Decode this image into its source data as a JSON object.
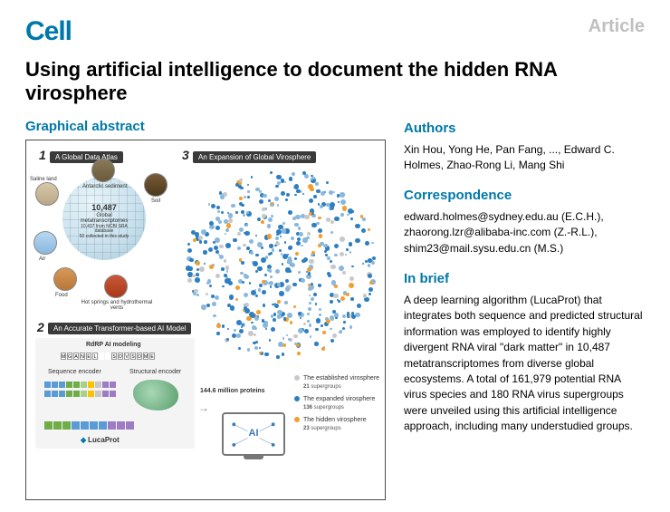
{
  "header": {
    "journal": "Cell",
    "label": "Article"
  },
  "title": "Using artificial intelligence to document the hidden RNA virosphere",
  "sections": {
    "graphical_abstract_heading": "Graphical abstract",
    "authors_heading": "Authors",
    "authors_text": "Xin Hou, Yong He, Pan Fang, ..., Edward C. Holmes, Zhao-Rong Li, Mang Shi",
    "correspondence_heading": "Correspondence",
    "correspondence_text": "edward.holmes@sydney.edu.au (E.C.H.), zhaorong.lzr@alibaba-inc.com (Z.-R.L.), shim23@mail.sysu.edu.cn (M.S.)",
    "inbrief_heading": "In brief",
    "inbrief_text": "A deep learning algorithm (LucaProt) that integrates both sequence and predicted structural information was employed to identify highly divergent RNA viral \"dark matter\" in 10,487 metatranscriptomes from diverse global ecosystems. A total of 161,979 potential RNA virus species and 180 RNA virus supergroups were unveiled using this artificial intelligence approach, including many understudied groups."
  },
  "ga": {
    "panel1": {
      "num": "1",
      "badge": "A Global Data Atlas",
      "samples": [
        "Antarctic sediment",
        "Soil",
        "Saline land",
        "Air",
        "Food",
        "Hot springs and hydrothermal vents"
      ],
      "stat_num": "10,487",
      "stat_l1": "Global metatranscriptomes",
      "stat_l2": "10,437 from NCBI SRA database",
      "stat_l3": "50 collected in this study"
    },
    "panel2": {
      "num": "2",
      "badge": "An Accurate Transformer-based AI Model",
      "rdpr": "RdRP AI modeling",
      "seq_enc": "Sequence encoder",
      "struct_enc": "Structural encoder",
      "proteins": "144.6 million proteins",
      "tool": "LucaProt",
      "ai": "AI"
    },
    "panel3": {
      "num": "3",
      "badge": "An Expansion of Global Virosphere",
      "legend": [
        {
          "color": "#c8c8c8",
          "label": "The established virosphere",
          "sub": "21 supergroups"
        },
        {
          "color": "#2e7fc2",
          "label": "The expanded virosphere",
          "sub": "136 supergroups"
        },
        {
          "color": "#f0a030",
          "label": "The hidden virosphere",
          "sub": "23 supergroups"
        }
      ]
    },
    "colors": {
      "blue": "#2e7fc2",
      "lightblue": "#8ab8dd",
      "gray": "#c8c8c8",
      "orange": "#f0a030",
      "encoder_colors": [
        "#5b9bd5",
        "#5b9bd5",
        "#5b9bd5",
        "#70ad47",
        "#70ad47",
        "#a8d08d",
        "#ffc000",
        "#c8c8c8",
        "#9e7cc3",
        "#9e7cc3"
      ]
    }
  }
}
